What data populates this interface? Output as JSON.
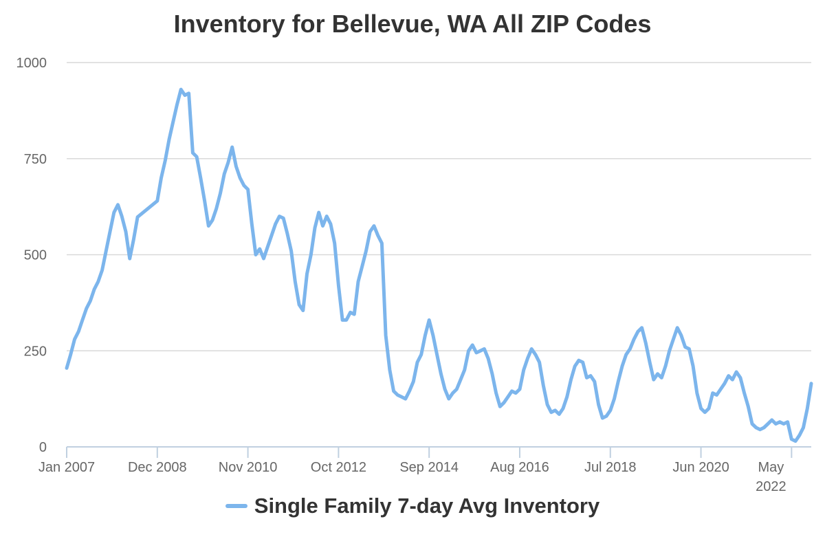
{
  "chart_data": {
    "type": "line",
    "title": "Inventory for Bellevue, WA All ZIP Codes",
    "xlabel": "",
    "ylabel": "",
    "ylim": [
      0,
      1000
    ],
    "y_ticks": [
      0,
      250,
      500,
      750,
      1000
    ],
    "x_ticks": [
      "Jan 2007",
      "Dec 2008",
      "Nov 2010",
      "Oct 2012",
      "Sep 2014",
      "Aug 2016",
      "Jul 2018",
      "Jun 2020",
      "May 2022"
    ],
    "x_range": [
      "2007-01",
      "2022-09"
    ],
    "grid": "horizontal",
    "legend_position": "bottom",
    "colors": {
      "series": "#7cb5ec",
      "grid": "#d9d9d9",
      "axis": "#c0d0e0"
    },
    "series": [
      {
        "name": "Single Family 7-day Avg Inventory",
        "points": [
          [
            "2007-01",
            205
          ],
          [
            "2007-02",
            240
          ],
          [
            "2007-03",
            280
          ],
          [
            "2007-04",
            300
          ],
          [
            "2007-05",
            330
          ],
          [
            "2007-06",
            360
          ],
          [
            "2007-07",
            380
          ],
          [
            "2007-08",
            410
          ],
          [
            "2007-09",
            430
          ],
          [
            "2007-10",
            460
          ],
          [
            "2007-11",
            510
          ],
          [
            "2007-12",
            560
          ],
          [
            "2008-01",
            610
          ],
          [
            "2008-02",
            630
          ],
          [
            "2008-03",
            600
          ],
          [
            "2008-04",
            560
          ],
          [
            "2008-05",
            490
          ],
          [
            "2008-06",
            540
          ],
          [
            "2008-07",
            598
          ],
          [
            "2008-12",
            640
          ],
          [
            "2009-01",
            700
          ],
          [
            "2009-02",
            745
          ],
          [
            "2009-03",
            800
          ],
          [
            "2009-04",
            845
          ],
          [
            "2009-05",
            890
          ],
          [
            "2009-06",
            930
          ],
          [
            "2009-07",
            915
          ],
          [
            "2009-08",
            920
          ],
          [
            "2009-09",
            765
          ],
          [
            "2009-10",
            755
          ],
          [
            "2009-11",
            700
          ],
          [
            "2009-12",
            640
          ],
          [
            "2010-01",
            575
          ],
          [
            "2010-02",
            590
          ],
          [
            "2010-03",
            620
          ],
          [
            "2010-04",
            660
          ],
          [
            "2010-05",
            710
          ],
          [
            "2010-06",
            740
          ],
          [
            "2010-07",
            780
          ],
          [
            "2010-08",
            730
          ],
          [
            "2010-09",
            700
          ],
          [
            "2010-10",
            680
          ],
          [
            "2010-11",
            670
          ],
          [
            "2010-12",
            580
          ],
          [
            "2011-01",
            500
          ],
          [
            "2011-02",
            515
          ],
          [
            "2011-03",
            490
          ],
          [
            "2011-04",
            520
          ],
          [
            "2011-05",
            550
          ],
          [
            "2011-06",
            580
          ],
          [
            "2011-07",
            600
          ],
          [
            "2011-08",
            595
          ],
          [
            "2011-09",
            555
          ],
          [
            "2011-10",
            510
          ],
          [
            "2011-11",
            430
          ],
          [
            "2011-12",
            370
          ],
          [
            "2012-01",
            355
          ],
          [
            "2012-02",
            450
          ],
          [
            "2012-03",
            500
          ],
          [
            "2012-04",
            570
          ],
          [
            "2012-05",
            610
          ],
          [
            "2012-06",
            575
          ],
          [
            "2012-07",
            600
          ],
          [
            "2012-08",
            580
          ],
          [
            "2012-09",
            530
          ],
          [
            "2012-10",
            420
          ],
          [
            "2012-11",
            330
          ],
          [
            "2012-12",
            330
          ],
          [
            "2013-01",
            350
          ],
          [
            "2013-02",
            345
          ],
          [
            "2013-03",
            430
          ],
          [
            "2013-04",
            470
          ],
          [
            "2013-05",
            510
          ],
          [
            "2013-06",
            560
          ],
          [
            "2013-07",
            575
          ],
          [
            "2013-08",
            550
          ],
          [
            "2013-09",
            530
          ],
          [
            "2013-10",
            290
          ],
          [
            "2013-11",
            200
          ],
          [
            "2013-12",
            145
          ],
          [
            "2014-01",
            135
          ],
          [
            "2014-02",
            130
          ],
          [
            "2014-03",
            125
          ],
          [
            "2014-04",
            145
          ],
          [
            "2014-05",
            170
          ],
          [
            "2014-06",
            220
          ],
          [
            "2014-07",
            240
          ],
          [
            "2014-08",
            290
          ],
          [
            "2014-09",
            330
          ],
          [
            "2014-10",
            290
          ],
          [
            "2014-11",
            240
          ],
          [
            "2014-12",
            190
          ],
          [
            "2015-01",
            150
          ],
          [
            "2015-02",
            125
          ],
          [
            "2015-03",
            140
          ],
          [
            "2015-04",
            150
          ],
          [
            "2015-05",
            175
          ],
          [
            "2015-06",
            200
          ],
          [
            "2015-07",
            250
          ],
          [
            "2015-08",
            265
          ],
          [
            "2015-09",
            245
          ],
          [
            "2015-10",
            250
          ],
          [
            "2015-11",
            255
          ],
          [
            "2015-12",
            230
          ],
          [
            "2016-01",
            190
          ],
          [
            "2016-02",
            140
          ],
          [
            "2016-03",
            105
          ],
          [
            "2016-04",
            115
          ],
          [
            "2016-05",
            130
          ],
          [
            "2016-06",
            145
          ],
          [
            "2016-07",
            140
          ],
          [
            "2016-08",
            150
          ],
          [
            "2016-09",
            200
          ],
          [
            "2016-10",
            230
          ],
          [
            "2016-11",
            255
          ],
          [
            "2016-12",
            240
          ],
          [
            "2017-01",
            220
          ],
          [
            "2017-02",
            160
          ],
          [
            "2017-03",
            110
          ],
          [
            "2017-04",
            90
          ],
          [
            "2017-05",
            95
          ],
          [
            "2017-06",
            85
          ],
          [
            "2017-07",
            100
          ],
          [
            "2017-08",
            130
          ],
          [
            "2017-09",
            175
          ],
          [
            "2017-10",
            210
          ],
          [
            "2017-11",
            225
          ],
          [
            "2017-12",
            220
          ],
          [
            "2018-01",
            180
          ],
          [
            "2018-02",
            185
          ],
          [
            "2018-03",
            170
          ],
          [
            "2018-04",
            110
          ],
          [
            "2018-05",
            75
          ],
          [
            "2018-06",
            80
          ],
          [
            "2018-07",
            95
          ],
          [
            "2018-08",
            125
          ],
          [
            "2018-09",
            170
          ],
          [
            "2018-10",
            210
          ],
          [
            "2018-11",
            240
          ],
          [
            "2018-12",
            255
          ],
          [
            "2019-01",
            280
          ],
          [
            "2019-02",
            300
          ],
          [
            "2019-03",
            310
          ],
          [
            "2019-04",
            270
          ],
          [
            "2019-05",
            220
          ],
          [
            "2019-06",
            175
          ],
          [
            "2019-07",
            190
          ],
          [
            "2019-08",
            180
          ],
          [
            "2019-09",
            210
          ],
          [
            "2019-10",
            250
          ],
          [
            "2019-11",
            280
          ],
          [
            "2019-12",
            310
          ],
          [
            "2020-01",
            290
          ],
          [
            "2020-02",
            260
          ],
          [
            "2020-03",
            255
          ],
          [
            "2020-04",
            210
          ],
          [
            "2020-05",
            140
          ],
          [
            "2020-06",
            100
          ],
          [
            "2020-07",
            90
          ],
          [
            "2020-08",
            100
          ],
          [
            "2020-09",
            140
          ],
          [
            "2020-10",
            135
          ],
          [
            "2020-11",
            150
          ],
          [
            "2020-12",
            165
          ],
          [
            "2021-01",
            185
          ],
          [
            "2021-02",
            175
          ],
          [
            "2021-03",
            195
          ],
          [
            "2021-04",
            180
          ],
          [
            "2021-05",
            140
          ],
          [
            "2021-06",
            105
          ],
          [
            "2021-07",
            60
          ],
          [
            "2021-08",
            50
          ],
          [
            "2021-09",
            45
          ],
          [
            "2021-10",
            50
          ],
          [
            "2021-11",
            60
          ],
          [
            "2021-12",
            70
          ],
          [
            "2022-01",
            60
          ],
          [
            "2022-02",
            65
          ],
          [
            "2022-03",
            60
          ],
          [
            "2022-04",
            65
          ],
          [
            "2022-05",
            20
          ],
          [
            "2022-06",
            15
          ],
          [
            "2022-07",
            30
          ],
          [
            "2022-08",
            50
          ],
          [
            "2022-09",
            100
          ],
          [
            "2022-10",
            165
          ]
        ]
      }
    ]
  }
}
